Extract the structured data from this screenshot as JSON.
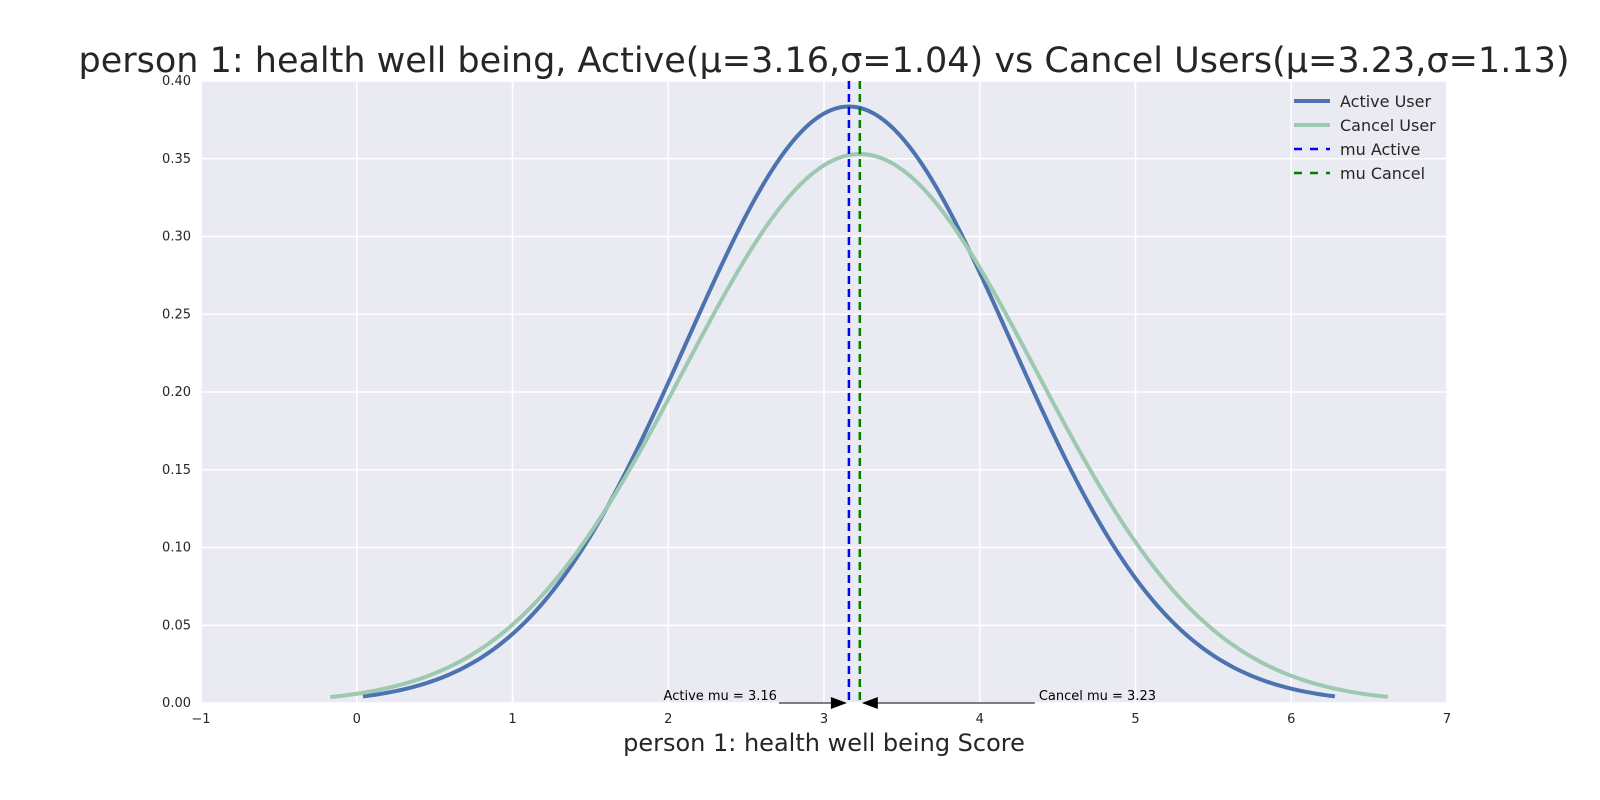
{
  "chart_data": {
    "type": "line",
    "title": "person 1: health well being, Active(μ=3.16,σ=1.04) vs Cancel Users(μ=3.23,σ=1.13)",
    "xlabel": "person 1: health well being Score",
    "ylabel": "",
    "xlim": [
      -1,
      7
    ],
    "ylim": [
      0,
      0.4
    ],
    "grid": true,
    "x_ticks": [
      "−1",
      "0",
      "1",
      "2",
      "3",
      "4",
      "5",
      "6",
      "7"
    ],
    "y_ticks": [
      "0.00",
      "0.05",
      "0.10",
      "0.15",
      "0.20",
      "0.25",
      "0.30",
      "0.35",
      "0.40"
    ],
    "legend_position": "top-right",
    "background_color": "#EAEAF2",
    "series": [
      {
        "name": "Active User",
        "type": "normal_pdf",
        "mu": 3.16,
        "sigma": 1.04,
        "x_range": [
          0.04,
          6.28
        ],
        "color": "#4C72B0",
        "style": "solid"
      },
      {
        "name": "Cancel User",
        "type": "normal_pdf",
        "mu": 3.23,
        "sigma": 1.13,
        "x_range": [
          -0.17,
          6.62
        ],
        "color": "#9CC9B0",
        "style": "solid"
      }
    ],
    "vlines": [
      {
        "name": "mu Active",
        "x": 3.16,
        "color": "#0000FF",
        "style": "dashed"
      },
      {
        "name": "mu Cancel",
        "x": 3.23,
        "color": "#008000",
        "style": "dashed"
      }
    ],
    "annotations": [
      {
        "text": "Active mu = 3.16",
        "x": 3.16,
        "y": 0,
        "side": "left"
      },
      {
        "text": "Cancel mu = 3.23",
        "x": 3.23,
        "y": 0,
        "side": "right"
      }
    ]
  }
}
